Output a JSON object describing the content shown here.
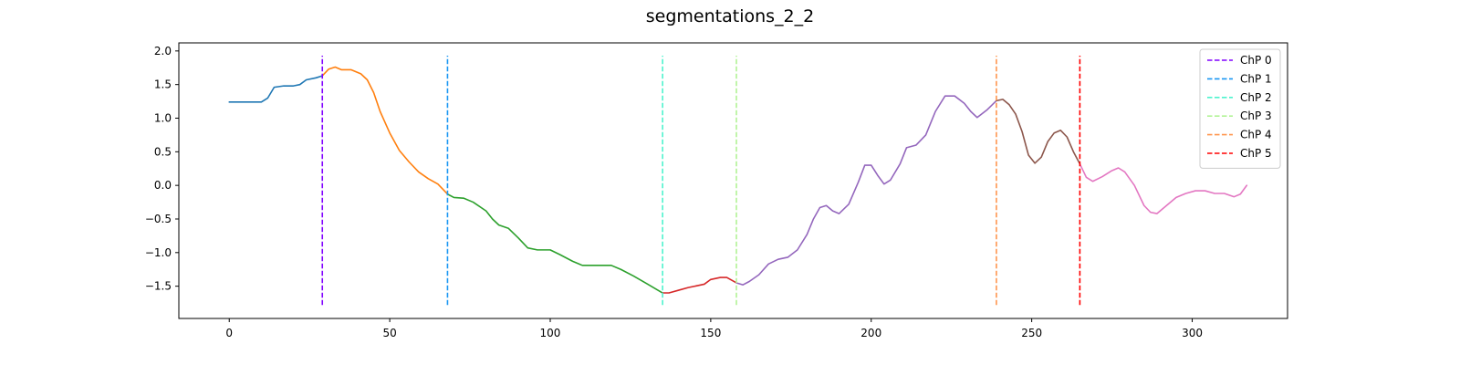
{
  "chart_data": {
    "type": "line",
    "title": "segmentations_2_2",
    "xlabel": "",
    "ylabel": "",
    "xlim": [
      -15.7,
      329.7
    ],
    "ylim": [
      -1.98,
      2.12
    ],
    "xticks": [
      0,
      50,
      100,
      150,
      200,
      250,
      300
    ],
    "xtick_labels": [
      "0",
      "50",
      "100",
      "150",
      "200",
      "250",
      "300"
    ],
    "yticks": [
      -1.5,
      -1.0,
      -0.5,
      0.0,
      0.5,
      1.0,
      1.5,
      2.0
    ],
    "ytick_labels": [
      "−1.5",
      "−1.0",
      "−0.5",
      "0.0",
      "0.5",
      "1.0",
      "1.5",
      "2.0"
    ],
    "grid": false,
    "legend_position": "top-right",
    "segments": [
      {
        "color": "#1f77b4",
        "points": [
          [
            0,
            1.24
          ],
          [
            5,
            1.24
          ],
          [
            10,
            1.24
          ],
          [
            12,
            1.3
          ],
          [
            14,
            1.46
          ],
          [
            17,
            1.48
          ],
          [
            20,
            1.48
          ],
          [
            22,
            1.5
          ],
          [
            24,
            1.57
          ],
          [
            27,
            1.6
          ],
          [
            29,
            1.63
          ]
        ]
      },
      {
        "color": "#ff7f0e",
        "points": [
          [
            29,
            1.63
          ],
          [
            31,
            1.73
          ],
          [
            33,
            1.76
          ],
          [
            35,
            1.72
          ],
          [
            38,
            1.72
          ],
          [
            41,
            1.66
          ],
          [
            43,
            1.57
          ],
          [
            45,
            1.38
          ],
          [
            47,
            1.1
          ],
          [
            50,
            0.78
          ],
          [
            53,
            0.52
          ],
          [
            56,
            0.35
          ],
          [
            59,
            0.2
          ],
          [
            62,
            0.1
          ],
          [
            65,
            0.02
          ],
          [
            68,
            -0.13
          ]
        ]
      },
      {
        "color": "#2ca02c",
        "points": [
          [
            68,
            -0.13
          ],
          [
            70,
            -0.18
          ],
          [
            73,
            -0.19
          ],
          [
            76,
            -0.25
          ],
          [
            80,
            -0.38
          ],
          [
            82,
            -0.5
          ],
          [
            84,
            -0.59
          ],
          [
            87,
            -0.64
          ],
          [
            90,
            -0.78
          ],
          [
            93,
            -0.93
          ],
          [
            96,
            -0.96
          ],
          [
            100,
            -0.96
          ],
          [
            103,
            -1.03
          ],
          [
            107,
            -1.13
          ],
          [
            110,
            -1.19
          ],
          [
            115,
            -1.19
          ],
          [
            119,
            -1.19
          ],
          [
            122,
            -1.25
          ],
          [
            126,
            -1.35
          ],
          [
            130,
            -1.46
          ],
          [
            135,
            -1.6
          ]
        ]
      },
      {
        "color": "#d62728",
        "points": [
          [
            135,
            -1.6
          ],
          [
            137,
            -1.6
          ],
          [
            140,
            -1.56
          ],
          [
            143,
            -1.52
          ],
          [
            146,
            -1.49
          ],
          [
            148,
            -1.47
          ],
          [
            150,
            -1.4
          ],
          [
            153,
            -1.37
          ],
          [
            155,
            -1.37
          ],
          [
            158,
            -1.45
          ]
        ]
      },
      {
        "color": "#9467bd",
        "points": [
          [
            158,
            -1.45
          ],
          [
            160,
            -1.48
          ],
          [
            162,
            -1.43
          ],
          [
            165,
            -1.33
          ],
          [
            168,
            -1.17
          ],
          [
            171,
            -1.1
          ],
          [
            174,
            -1.07
          ],
          [
            177,
            -0.96
          ],
          [
            180,
            -0.73
          ],
          [
            182,
            -0.5
          ],
          [
            184,
            -0.33
          ],
          [
            186,
            -0.3
          ],
          [
            188,
            -0.38
          ],
          [
            190,
            -0.42
          ],
          [
            193,
            -0.28
          ],
          [
            196,
            0.05
          ],
          [
            198,
            0.3
          ],
          [
            200,
            0.3
          ],
          [
            202,
            0.15
          ],
          [
            204,
            0.02
          ],
          [
            206,
            0.08
          ],
          [
            209,
            0.32
          ],
          [
            211,
            0.56
          ],
          [
            214,
            0.6
          ],
          [
            217,
            0.75
          ],
          [
            220,
            1.1
          ],
          [
            223,
            1.33
          ],
          [
            226,
            1.33
          ],
          [
            229,
            1.22
          ],
          [
            231,
            1.1
          ],
          [
            233,
            1.01
          ],
          [
            236,
            1.12
          ],
          [
            239,
            1.26
          ]
        ]
      },
      {
        "color": "#8c564b",
        "points": [
          [
            239,
            1.26
          ],
          [
            241,
            1.28
          ],
          [
            243,
            1.2
          ],
          [
            245,
            1.06
          ],
          [
            247,
            0.8
          ],
          [
            249,
            0.45
          ],
          [
            251,
            0.33
          ],
          [
            253,
            0.42
          ],
          [
            255,
            0.65
          ],
          [
            257,
            0.78
          ],
          [
            259,
            0.82
          ],
          [
            261,
            0.72
          ],
          [
            263,
            0.5
          ],
          [
            265,
            0.32
          ]
        ]
      },
      {
        "color": "#e377c2",
        "points": [
          [
            265,
            0.32
          ],
          [
            267,
            0.12
          ],
          [
            269,
            0.06
          ],
          [
            272,
            0.13
          ],
          [
            275,
            0.22
          ],
          [
            277,
            0.26
          ],
          [
            279,
            0.2
          ],
          [
            282,
            0.0
          ],
          [
            285,
            -0.3
          ],
          [
            287,
            -0.4
          ],
          [
            289,
            -0.42
          ],
          [
            292,
            -0.3
          ],
          [
            295,
            -0.18
          ],
          [
            298,
            -0.12
          ],
          [
            301,
            -0.08
          ],
          [
            304,
            -0.08
          ],
          [
            307,
            -0.12
          ],
          [
            310,
            -0.12
          ],
          [
            313,
            -0.17
          ],
          [
            315,
            -0.13
          ],
          [
            317,
            0.0
          ]
        ]
      }
    ],
    "changepoints": [
      {
        "label": "ChP 0",
        "x": 29,
        "color": "#8000ff"
      },
      {
        "label": "ChP 1",
        "x": 68,
        "color": "#1996f3"
      },
      {
        "label": "ChP 2",
        "x": 135,
        "color": "#4df3ce"
      },
      {
        "label": "ChP 3",
        "x": 158,
        "color": "#b2f396"
      },
      {
        "label": "ChP 4",
        "x": 239,
        "color": "#ff964f"
      },
      {
        "label": "ChP 5",
        "x": 265,
        "color": "#ff0000"
      }
    ],
    "changepoint_yrange": [
      -1.78,
      1.93
    ]
  }
}
